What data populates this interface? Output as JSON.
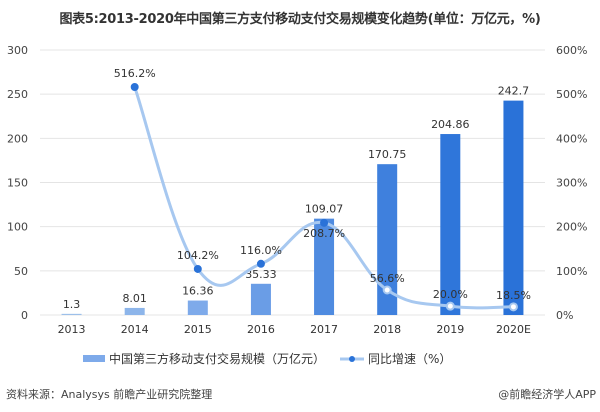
{
  "title": "图表5:2013-2020年中国第三方支付移动支付交易规模变化趋势(单位：万亿元，%)",
  "source": "资料来源：Analysys 前瞻产业研究院整理",
  "credit": "@前瞻经济学人APP",
  "colors": {
    "bars": [
      "#9dc0ea",
      "#8db5ea",
      "#7eaaea",
      "#6a9de6",
      "#4f8be0",
      "#3f80dd",
      "#2f76da",
      "#2a72d8"
    ],
    "line": "#a7c8f0",
    "marker": "#2a72d8",
    "grid": "#e4e4e4"
  },
  "chart_data": {
    "type": "bar+line",
    "title": "图表5:2013-2020年中国第三方支付移动支付交易规模变化趋势(单位：万亿元，%)",
    "categories": [
      "2013",
      "2014",
      "2015",
      "2016",
      "2017",
      "2018",
      "2019",
      "2020E"
    ],
    "series": [
      {
        "name": "中国第三方移动支付交易规模（万亿元）",
        "type": "bar",
        "axis": "left",
        "values": [
          1.3,
          8.01,
          16.36,
          35.33,
          109.07,
          170.75,
          204.86,
          242.7
        ],
        "labels": [
          "1.3",
          "8.01",
          "16.36",
          "35.33",
          "109.07",
          "170.75",
          "204.86",
          "242.7"
        ]
      },
      {
        "name": "同比增速（%）",
        "type": "line",
        "axis": "right",
        "values": [
          null,
          516.2,
          104.2,
          116.0,
          208.7,
          56.6,
          20.0,
          18.5
        ],
        "labels": [
          "",
          "516.2%",
          "104.2%",
          "116.0%",
          "208.7%",
          "56.6%",
          "20.0%",
          "18.5%"
        ]
      }
    ],
    "left_axis": {
      "ylim": [
        0,
        300
      ],
      "ticks": [
        "0",
        "50",
        "100",
        "150",
        "200",
        "250",
        "300"
      ]
    },
    "right_axis": {
      "ylim": [
        0,
        600
      ],
      "ticks": [
        "0%",
        "100%",
        "200%",
        "300%",
        "400%",
        "500%",
        "600%"
      ]
    },
    "grid": true,
    "legend_position": "bottom"
  }
}
